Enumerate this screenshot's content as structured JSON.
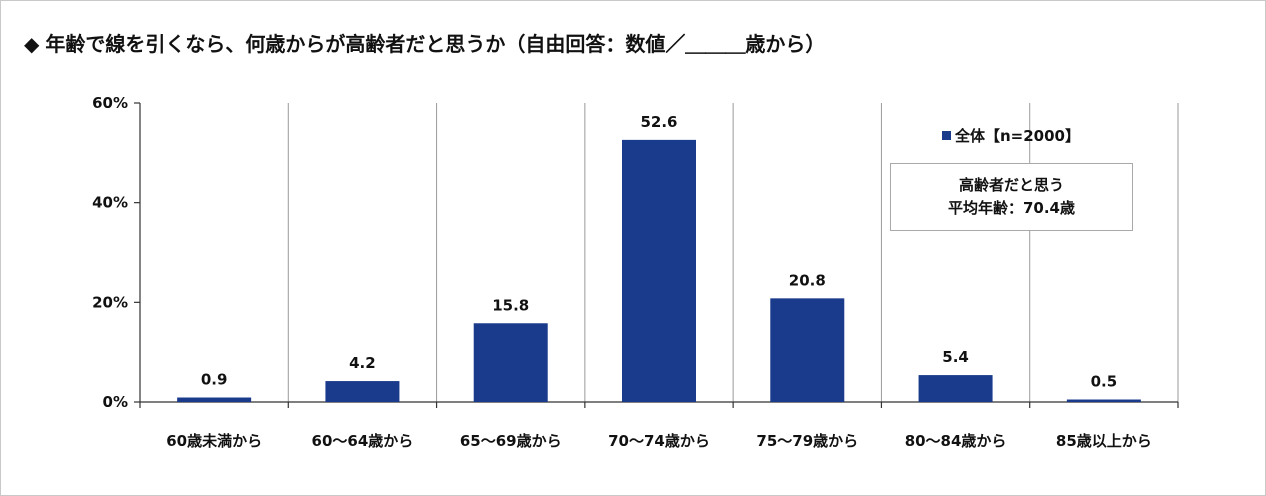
{
  "title": {
    "marker": "◆",
    "text": "年齢で線を引くなら、何歳からが高齢者だと思うか（自由回答：数値／＿＿＿歳から）"
  },
  "legend": {
    "label": "全体【n=2000】",
    "color": "#1a3a8c"
  },
  "note": {
    "line1": "高齢者だと思う",
    "line2": "平均年齢：70.4歳"
  },
  "chart_data": {
    "type": "bar",
    "title": "年齢で線を引くなら、何歳からが高齢者だと思うか（自由回答：数値／＿＿＿歳から）",
    "categories": [
      "60歳未満から",
      "60～64歳から",
      "65～69歳から",
      "70～74歳から",
      "75～79歳から",
      "80～84歳から",
      "85歳以上から"
    ],
    "series": [
      {
        "name": "全体【n=2000】",
        "values": [
          0.9,
          4.2,
          15.8,
          52.6,
          20.8,
          5.4,
          0.5
        ],
        "value_labels": [
          "0.9",
          "4.2",
          "15.8",
          "52.6",
          "20.8",
          "5.4",
          "0.5"
        ]
      }
    ],
    "ylim": [
      0,
      60
    ],
    "yticks": [
      0,
      20,
      40,
      60
    ],
    "ytick_labels": [
      "0%",
      "20%",
      "40%",
      "60%"
    ],
    "xlabel": "",
    "ylabel": "",
    "grid": "vertical separators between categories",
    "legend_position": "top-right",
    "bar_color": "#1a3a8c"
  }
}
